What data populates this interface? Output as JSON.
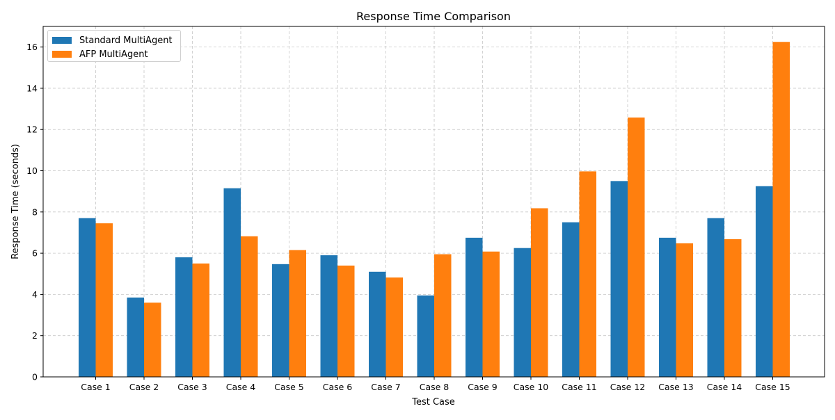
{
  "chart_data": {
    "type": "bar",
    "title": "Response Time Comparison",
    "xlabel": "Test Case",
    "ylabel": "Response Time (seconds)",
    "ylim": [
      0,
      17
    ],
    "yticks": [
      0,
      2,
      4,
      6,
      8,
      10,
      12,
      14,
      16
    ],
    "grid": true,
    "legend_position": "top-left",
    "categories": [
      "Case 1",
      "Case 2",
      "Case 3",
      "Case 4",
      "Case 5",
      "Case 6",
      "Case 7",
      "Case 8",
      "Case 9",
      "Case 10",
      "Case 11",
      "Case 12",
      "Case 13",
      "Case 14",
      "Case 15"
    ],
    "series": [
      {
        "name": "Standard MultiAgent",
        "color": "#1f77b4",
        "values": [
          7.7,
          3.85,
          5.8,
          9.15,
          5.47,
          5.9,
          5.1,
          3.95,
          6.75,
          6.25,
          7.5,
          9.5,
          6.75,
          7.7,
          9.25
        ]
      },
      {
        "name": "AFP MultiAgent",
        "color": "#ff7f0e",
        "values": [
          7.45,
          3.6,
          5.5,
          6.82,
          6.15,
          5.4,
          4.82,
          5.95,
          6.08,
          8.18,
          9.97,
          12.58,
          6.48,
          6.68,
          16.25
        ]
      }
    ]
  }
}
